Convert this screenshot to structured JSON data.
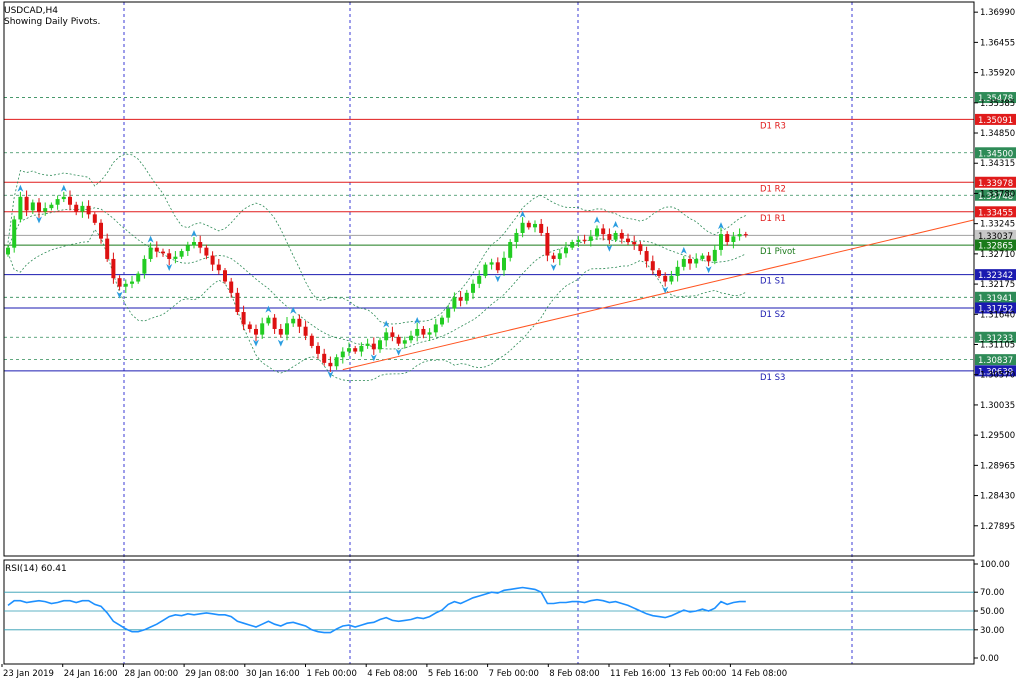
{
  "header": {
    "symbol_line": "USDCAD,H4",
    "pivots_line": "Showing Daily Pivots."
  },
  "rsi_label": "RSI(14) 60.41",
  "colors": {
    "bull": "#22cc22",
    "bear": "#dd1111",
    "grid": "#3b3bd6",
    "pivot_line": "#1a7a1a",
    "resistance": "#e01b1b",
    "support": "#1a1ab0",
    "trendline": "#ff5522",
    "band": "#2e8b57",
    "rsi": "#1e90ff",
    "current_price": "#a0a0a0",
    "arrow": "#2a9de0"
  },
  "chart_data": [
    {
      "type": "candlestick",
      "title": "USDCAD,H4",
      "subtitle": "Showing Daily Pivots.",
      "ylim": [
        1.2736,
        1.3717
      ],
      "y_ticks": [
        "1.36990",
        "1.36455",
        "1.35920",
        "1.35385",
        "1.34850",
        "1.34315",
        "1.33780",
        "1.33245",
        "1.32710",
        "1.32175",
        "1.31640",
        "1.31105",
        "1.30570",
        "1.30035",
        "1.29500",
        "1.28965",
        "1.28430",
        "1.27895"
      ],
      "x_labels": [
        "23 Jan 2019",
        "24 Jan 16:00",
        "28 Jan 00:00",
        "29 Jan 08:00",
        "30 Jan 16:00",
        "1 Feb 00:00",
        "4 Feb 08:00",
        "5 Feb 16:00",
        "7 Feb 00:00",
        "8 Feb 08:00",
        "11 Feb 16:00",
        "13 Feb 00:00",
        "14 Feb 08:00"
      ],
      "price_tags": [
        {
          "value": "1.35478",
          "kind": "level"
        },
        {
          "value": "1.35091",
          "kind": "resistance"
        },
        {
          "value": "1.34500",
          "kind": "level"
        },
        {
          "value": "1.33978",
          "kind": "resistance"
        },
        {
          "value": "1.33748",
          "kind": "level"
        },
        {
          "value": "1.33455",
          "kind": "resistance"
        },
        {
          "value": "1.33037",
          "kind": "current"
        },
        {
          "value": "1.32865",
          "kind": "pivot"
        },
        {
          "value": "1.32342",
          "kind": "support"
        },
        {
          "value": "1.31941",
          "kind": "level"
        },
        {
          "value": "1.31752",
          "kind": "support"
        },
        {
          "value": "1.31233",
          "kind": "level"
        },
        {
          "value": "1.30837",
          "kind": "level"
        },
        {
          "value": "1.30639",
          "kind": "support"
        }
      ],
      "pivot_levels": [
        {
          "name": "D1 R3",
          "value": 1.35091,
          "kind": "resistance"
        },
        {
          "name": "D1 R2",
          "value": 1.33978,
          "kind": "resistance"
        },
        {
          "name": "D1 R1",
          "value": 1.33455,
          "kind": "resistance"
        },
        {
          "name": "D1 Pivot",
          "value": 1.32865,
          "kind": "pivot"
        },
        {
          "name": "D1 S1",
          "value": 1.32342,
          "kind": "support"
        },
        {
          "name": "D1 S2",
          "value": 1.31752,
          "kind": "support"
        },
        {
          "name": "D1 S3",
          "value": 1.30639,
          "kind": "support"
        }
      ],
      "dashed_levels": [
        1.35478,
        1.345,
        1.33748,
        1.31941,
        1.31233,
        1.30837
      ],
      "current_price": 1.33037,
      "trendline": {
        "from": {
          "x": 54,
          "y": 1.3066
        },
        "to": {
          "x": 145,
          "y": 1.3303
        }
      },
      "closes": [
        1.3282,
        1.3332,
        1.3372,
        1.3348,
        1.3362,
        1.3346,
        1.3352,
        1.3358,
        1.3368,
        1.3372,
        1.3358,
        1.3346,
        1.3356,
        1.3341,
        1.3326,
        1.3298,
        1.3262,
        1.3228,
        1.3213,
        1.3218,
        1.3222,
        1.3236,
        1.3262,
        1.3282,
        1.3275,
        1.3272,
        1.3262,
        1.3266,
        1.3276,
        1.3286,
        1.3292,
        1.3282,
        1.3268,
        1.3252,
        1.3242,
        1.3222,
        1.3202,
        1.3168,
        1.3146,
        1.3138,
        1.3128,
        1.3148,
        1.3158,
        1.3138,
        1.3128,
        1.3148,
        1.3156,
        1.3142,
        1.3126,
        1.3108,
        1.3094,
        1.3078,
        1.3072,
        1.3088,
        1.3098,
        1.3104,
        1.3098,
        1.3108,
        1.3112,
        1.3102,
        1.3118,
        1.3132,
        1.3124,
        1.3112,
        1.3118,
        1.3126,
        1.3138,
        1.3128,
        1.3132,
        1.3146,
        1.3158,
        1.3174,
        1.3194,
        1.3188,
        1.3202,
        1.3218,
        1.3232,
        1.3252,
        1.3256,
        1.3242,
        1.3264,
        1.3292,
        1.3308,
        1.3326,
        1.3318,
        1.3324,
        1.3308,
        1.3268,
        1.3262,
        1.3272,
        1.3282,
        1.3292,
        1.3296,
        1.3294,
        1.3302,
        1.3316,
        1.3306,
        1.3296,
        1.3308,
        1.3298,
        1.3292,
        1.3288,
        1.3276,
        1.3258,
        1.3242,
        1.3232,
        1.3222,
        1.3232,
        1.3248,
        1.3262,
        1.3254,
        1.3262,
        1.3268,
        1.3258,
        1.3278,
        1.3306,
        1.3292,
        1.3302,
        1.3306,
        1.3304
      ],
      "rsi": {
        "name": "RSI(14)",
        "last": 60.41,
        "ylim": [
          0,
          100
        ],
        "y_ticks": [
          "100.00",
          "70.00",
          "50.00",
          "30.00",
          "0.00"
        ],
        "levels": [
          70,
          50,
          30
        ],
        "values": [
          56,
          61,
          61,
          59,
          60,
          61,
          60,
          58,
          59,
          61,
          61,
          59,
          61,
          61,
          57,
          55,
          48,
          39,
          35,
          31,
          28,
          28,
          30,
          33,
          36,
          40,
          44,
          46,
          45,
          47,
          46,
          47,
          48,
          47,
          46,
          46,
          44,
          39,
          37,
          35,
          33,
          36,
          39,
          36,
          34,
          37,
          38,
          36,
          34,
          30,
          28,
          27,
          27,
          31,
          34,
          35,
          33,
          35,
          37,
          38,
          41,
          43,
          40,
          39,
          40,
          41,
          43,
          42,
          44,
          48,
          51,
          57,
          60,
          58,
          61,
          64,
          66,
          68,
          70,
          69,
          72,
          73,
          74,
          75,
          74,
          73,
          70,
          58,
          58,
          59,
          59,
          60,
          60,
          59,
          61,
          62,
          61,
          59,
          60,
          58,
          56,
          53,
          50,
          47,
          45,
          44,
          43,
          45,
          48,
          51,
          49,
          50,
          52,
          50,
          53,
          60,
          57,
          59,
          60,
          60
        ]
      }
    }
  ]
}
